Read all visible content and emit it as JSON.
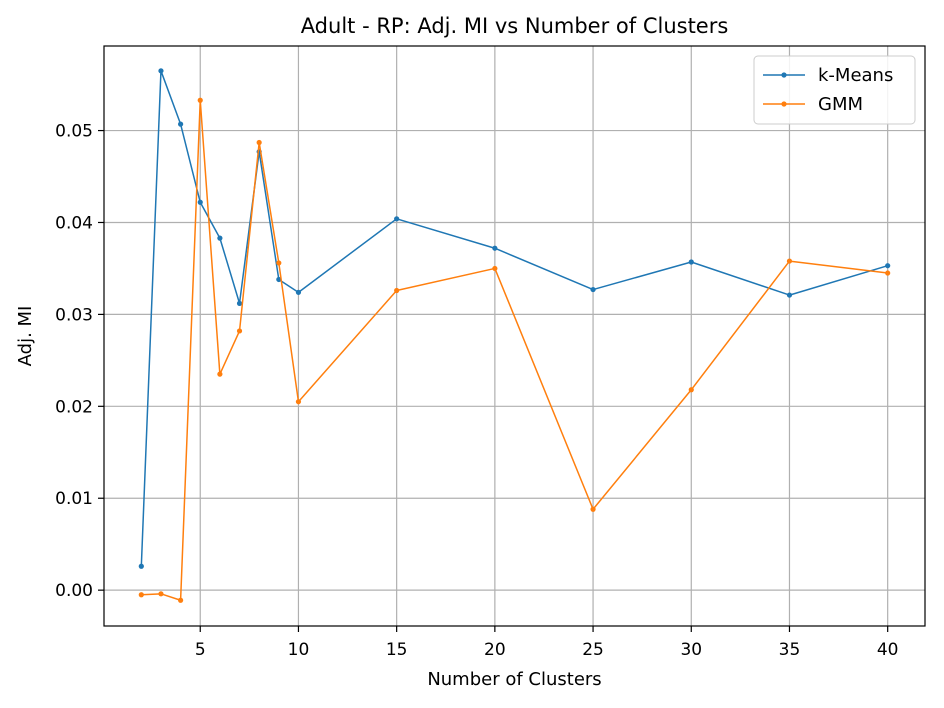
{
  "chart_data": {
    "type": "line",
    "title": "Adult - RP: Adj. MI vs Number of Clusters",
    "xlabel": "Number of Clusters",
    "ylabel": "Adj. MI",
    "x": [
      2,
      3,
      4,
      5,
      6,
      7,
      8,
      9,
      10,
      15,
      20,
      25,
      30,
      35,
      40
    ],
    "xlim": [
      0.1,
      41.9
    ],
    "ylim": [
      -0.0039,
      0.0592
    ],
    "xticks": [
      "5",
      "10",
      "15",
      "20",
      "25",
      "30",
      "35",
      "40"
    ],
    "yticks": [
      "0.00",
      "0.01",
      "0.02",
      "0.03",
      "0.04",
      "0.05"
    ],
    "grid": true,
    "legend_position": "top-right",
    "series": [
      {
        "name": "k-Means",
        "color": "#1f77b4",
        "values": [
          0.0026,
          0.0565,
          0.0507,
          0.0422,
          0.0383,
          0.0312,
          0.0477,
          0.0338,
          0.0324,
          0.0404,
          0.0372,
          0.0327,
          0.0357,
          0.0321,
          0.0353
        ]
      },
      {
        "name": "GMM",
        "color": "#ff7f0e",
        "values": [
          -0.0005,
          -0.0004,
          -0.0011,
          0.0533,
          0.0235,
          0.0282,
          0.0487,
          0.0356,
          0.0205,
          0.0326,
          0.035,
          0.0088,
          0.0218,
          0.0358,
          0.0345
        ]
      }
    ]
  }
}
